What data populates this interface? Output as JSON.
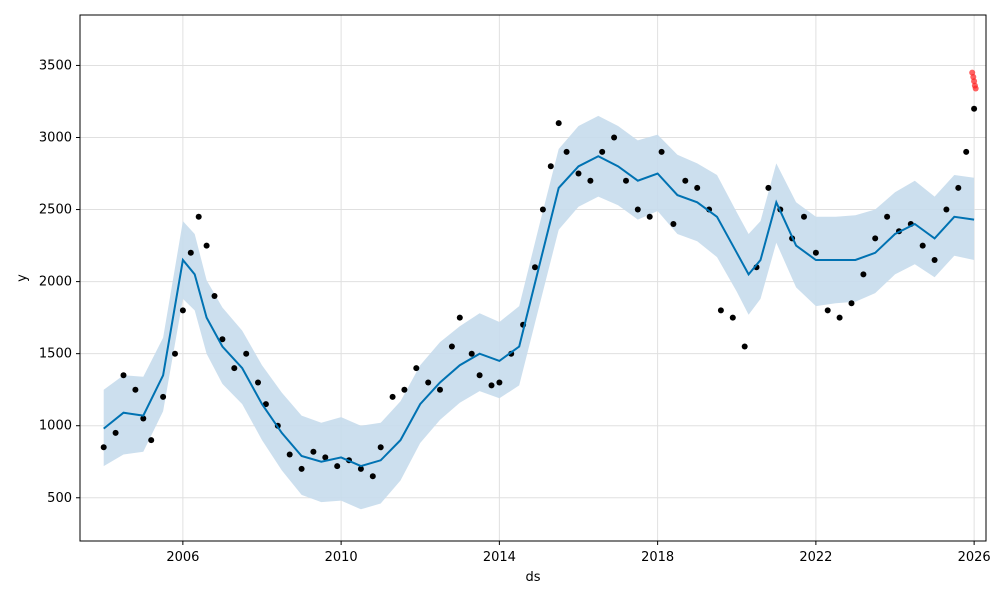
{
  "chart_data": {
    "type": "scatter",
    "xlabel": "ds",
    "ylabel": "y",
    "xlim": [
      2003.4,
      2026.3
    ],
    "ylim": [
      200,
      3850
    ],
    "grid": true,
    "x_ticks": [
      2006,
      2010,
      2014,
      2018,
      2022,
      2026
    ],
    "y_ticks": [
      500,
      1000,
      1500,
      2000,
      2500,
      3000,
      3500
    ],
    "colors": {
      "observed": "#000000",
      "forecast_line": "#0072B2",
      "uncertainty_band": "#c6dcec",
      "highlight_points": "#ff2020",
      "grid": "#e0e0e0"
    },
    "series": [
      {
        "role": "observed",
        "x": [
          2004.0,
          2004.3,
          2004.5,
          2004.8,
          2005.0,
          2005.2,
          2005.5,
          2005.8,
          2006.0,
          2006.2,
          2006.4,
          2006.6,
          2006.8,
          2007.0,
          2007.3,
          2007.6,
          2007.9,
          2008.1,
          2008.4,
          2008.7,
          2009.0,
          2009.3,
          2009.6,
          2009.9,
          2010.2,
          2010.5,
          2010.8,
          2011.0,
          2011.3,
          2011.6,
          2011.9,
          2012.2,
          2012.5,
          2012.8,
          2013.0,
          2013.3,
          2013.5,
          2013.8,
          2014.0,
          2014.3,
          2014.6,
          2014.9,
          2015.1,
          2015.3,
          2015.5,
          2015.7,
          2016.0,
          2016.3,
          2016.6,
          2016.9,
          2017.2,
          2017.5,
          2017.8,
          2018.1,
          2018.4,
          2018.7,
          2019.0,
          2019.3,
          2019.6,
          2019.9,
          2020.2,
          2020.5,
          2020.8,
          2021.1,
          2021.4,
          2021.7,
          2022.0,
          2022.3,
          2022.6,
          2022.9,
          2023.2,
          2023.5,
          2023.8,
          2024.1,
          2024.4,
          2024.7,
          2025.0,
          2025.3,
          2025.6,
          2025.8,
          2026.0
        ],
        "y": [
          850,
          950,
          1350,
          1250,
          1050,
          900,
          1200,
          1500,
          1800,
          2200,
          2450,
          2250,
          1900,
          1600,
          1400,
          1500,
          1300,
          1150,
          1000,
          800,
          700,
          820,
          780,
          720,
          760,
          700,
          650,
          850,
          1200,
          1250,
          1400,
          1300,
          1250,
          1550,
          1750,
          1500,
          1350,
          1280,
          1300,
          1500,
          1700,
          2100,
          2500,
          2800,
          3100,
          2900,
          2750,
          2700,
          2900,
          3000,
          2700,
          2500,
          2450,
          2900,
          2400,
          2700,
          2650,
          2500,
          1800,
          1750,
          1550,
          2100,
          2650,
          2500,
          2300,
          2450,
          2200,
          1800,
          1750,
          1850,
          2050,
          2300,
          2450,
          2350,
          2400,
          2250,
          2150,
          2500,
          2650,
          2900,
          3200
        ]
      },
      {
        "role": "forecast",
        "x": [
          2004.0,
          2004.5,
          2005.0,
          2005.5,
          2006.0,
          2006.3,
          2006.6,
          2007.0,
          2007.5,
          2008.0,
          2008.5,
          2009.0,
          2009.5,
          2010.0,
          2010.5,
          2011.0,
          2011.5,
          2012.0,
          2012.5,
          2013.0,
          2013.5,
          2014.0,
          2014.5,
          2015.0,
          2015.5,
          2016.0,
          2016.5,
          2017.0,
          2017.5,
          2018.0,
          2018.5,
          2019.0,
          2019.5,
          2020.0,
          2020.3,
          2020.6,
          2021.0,
          2021.5,
          2022.0,
          2022.5,
          2023.0,
          2023.5,
          2024.0,
          2024.5,
          2025.0,
          2025.5,
          2026.0
        ],
        "yhat": [
          980,
          1090,
          1070,
          1350,
          2150,
          2050,
          1750,
          1550,
          1400,
          1150,
          950,
          790,
          750,
          780,
          720,
          760,
          900,
          1150,
          1300,
          1420,
          1500,
          1450,
          1550,
          2100,
          2650,
          2800,
          2870,
          2800,
          2700,
          2750,
          2600,
          2550,
          2450,
          2200,
          2050,
          2150,
          2550,
          2250,
          2150,
          2150,
          2150,
          2200,
          2330,
          2400,
          2300,
          2450,
          2430
        ],
        "yhat_lower": [
          720,
          800,
          820,
          1100,
          1880,
          1800,
          1500,
          1290,
          1150,
          900,
          690,
          520,
          470,
          480,
          420,
          460,
          620,
          880,
          1040,
          1160,
          1240,
          1190,
          1280,
          1820,
          2360,
          2520,
          2590,
          2530,
          2430,
          2490,
          2330,
          2280,
          2170,
          1930,
          1770,
          1880,
          2270,
          1960,
          1830,
          1850,
          1860,
          1920,
          2050,
          2120,
          2030,
          2180,
          2150
        ],
        "yhat_upper": [
          1250,
          1350,
          1340,
          1610,
          2420,
          2330,
          2010,
          1820,
          1660,
          1420,
          1230,
          1070,
          1020,
          1060,
          1000,
          1020,
          1170,
          1420,
          1580,
          1690,
          1780,
          1720,
          1830,
          2380,
          2920,
          3080,
          3150,
          3080,
          2980,
          3020,
          2880,
          2820,
          2740,
          2480,
          2330,
          2420,
          2820,
          2550,
          2450,
          2450,
          2460,
          2500,
          2620,
          2700,
          2590,
          2740,
          2720
        ]
      },
      {
        "role": "highlight",
        "x": [
          2025.95,
          2025.98,
          2026.0,
          2026.02,
          2026.04
        ],
        "y": [
          3450,
          3420,
          3390,
          3360,
          3340
        ]
      }
    ]
  }
}
